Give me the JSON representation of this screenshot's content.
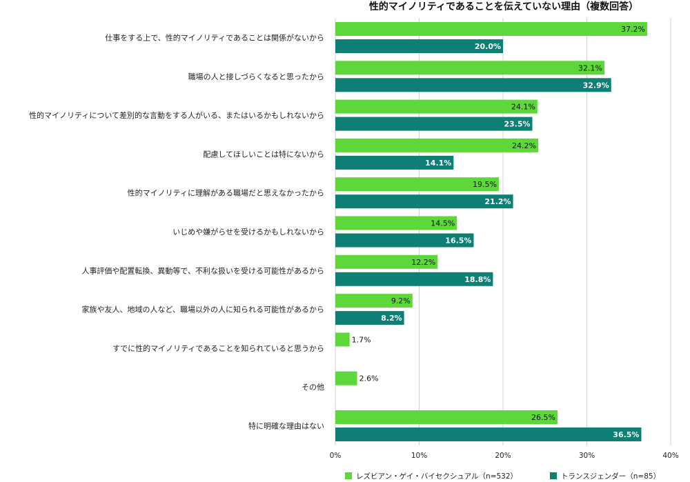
{
  "chart_data": {
    "type": "bar",
    "orientation": "horizontal",
    "title": "性的マイノリティであることを伝えていない理由（複数回答）",
    "xlabel": "",
    "ylabel": "",
    "xlim": [
      0,
      40
    ],
    "ticks": [
      0,
      10,
      20,
      30,
      40
    ],
    "tick_labels": [
      "0%",
      "10%",
      "20%",
      "30%",
      "40%"
    ],
    "grid": true,
    "legend_position": "bottom",
    "categories": [
      "仕事をする上で、性的マイノリティであることは関係がないから",
      "職場の人と接しづらくなると思ったから",
      "性的マイノリティについて差別的な言動をする人がいる、またはいるかもしれないから",
      "配慮してほしいことは特にないから",
      "性的マイノリティに理解がある職場だと思えなかったから",
      "いじめや嫌がらせを受けるかもしれないから",
      "人事評価や配置転換、異動等で、不利な扱いを受ける可能性があるから",
      "家族や友人、地域の人など、職場以外の人に知られる可能性があるから",
      "すでに性的マイノリティであることを知られていると思うから",
      "その他",
      "特に明確な理由はない"
    ],
    "series": [
      {
        "name": "レズビアン・ゲイ・バイセクシュアル（n=532）",
        "color": "#5ed73a",
        "values": [
          37.2,
          32.1,
          24.1,
          24.2,
          19.5,
          14.5,
          12.2,
          9.2,
          1.7,
          2.6,
          26.5
        ],
        "labels": [
          "37.2%",
          "32.1%",
          "24.1%",
          "24.2%",
          "19.5%",
          "14.5%",
          "12.2%",
          "9.2%",
          "1.7%",
          "2.6%",
          "26.5%"
        ]
      },
      {
        "name": "トランスジェンダー（n=85）",
        "color": "#0d7f74",
        "values": [
          20.0,
          32.9,
          23.5,
          14.1,
          21.2,
          16.5,
          18.8,
          8.2,
          null,
          null,
          36.5
        ],
        "labels": [
          "20.0%",
          "32.9%",
          "23.5%",
          "14.1%",
          "21.2%",
          "16.5%",
          "18.8%",
          "8.2%",
          "",
          "",
          "36.5%"
        ]
      }
    ]
  }
}
